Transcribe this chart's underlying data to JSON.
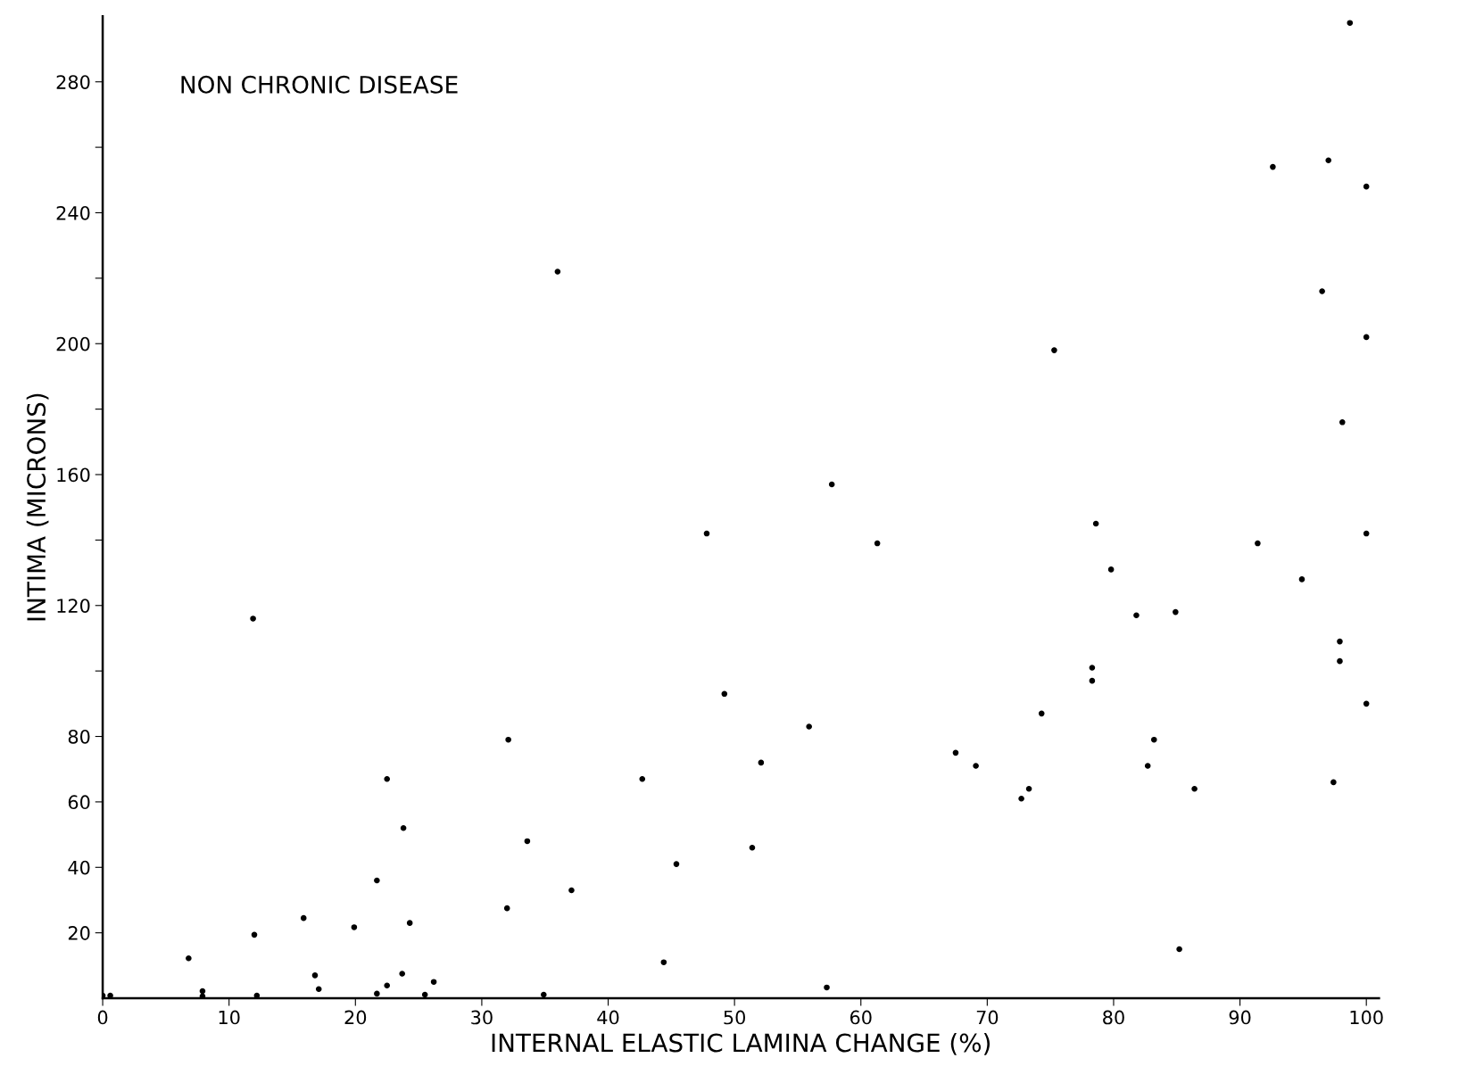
{
  "chart_data": {
    "type": "scatter",
    "title": "NON CHRONIC DISEASE",
    "xlabel": "INTERNAL ELASTIC LAMINA CHANGE (%)",
    "ylabel": "INTIMA (MICRONS)",
    "x": [
      98.7,
      92.6,
      97.0,
      100,
      36.0,
      96.5,
      100,
      75.3,
      98.1,
      57.7,
      47.8,
      61.3,
      78.6,
      100,
      91.4,
      79.8,
      94.9,
      11.9,
      81.8,
      84.9,
      97.9,
      97.9,
      78.3,
      78.3,
      49.2,
      100,
      74.3,
      55.9,
      32.1,
      83.2,
      67.5,
      52.1,
      69.1,
      82.7,
      22.5,
      42.7,
      97.4,
      86.4,
      73.3,
      72.7,
      23.8,
      33.6,
      51.4,
      45.4,
      21.7,
      37.1,
      32.0,
      15.9,
      24.3,
      19.9,
      12.0,
      6.8,
      44.4,
      85.2,
      16.8,
      23.7,
      26.2,
      17.1,
      22.5,
      57.3,
      7.9,
      21.7,
      25.5,
      34.9,
      12.2,
      0.6,
      0,
      7.9
    ],
    "values": [
      298,
      254,
      256,
      248,
      222,
      216,
      202,
      198,
      176,
      157,
      142,
      139,
      145,
      142,
      139,
      131,
      128,
      116,
      117,
      118,
      109,
      103,
      101,
      97,
      93,
      90,
      87,
      83,
      79,
      79,
      75,
      72,
      71,
      71,
      67,
      67,
      66,
      64,
      64,
      61,
      52,
      48,
      46,
      41,
      36,
      33,
      27.5,
      24.5,
      23,
      21.7,
      19.4,
      12.2,
      11,
      15,
      7,
      7.5,
      5,
      2.8,
      3.9,
      3.3,
      2.2,
      1.4,
      1.1,
      1.1,
      0.8,
      0.8,
      0.8,
      0.6
    ],
    "color": "#000000",
    "marker": "circle",
    "grid": false,
    "legend": false,
    "xlim": [
      0,
      101
    ],
    "xticks": [
      0,
      10,
      20,
      30,
      40,
      50,
      60,
      70,
      80,
      90,
      100
    ],
    "ylim": [
      0,
      300
    ],
    "yticks": [
      20,
      40,
      60,
      80,
      {
        "value": 100,
        "label": null
      },
      120,
      {
        "value": 140,
        "label": null
      },
      160,
      {
        "value": 180,
        "label": null
      },
      200,
      {
        "value": 220,
        "label": null
      },
      240,
      {
        "value": 260,
        "label": null
      },
      280
    ]
  }
}
